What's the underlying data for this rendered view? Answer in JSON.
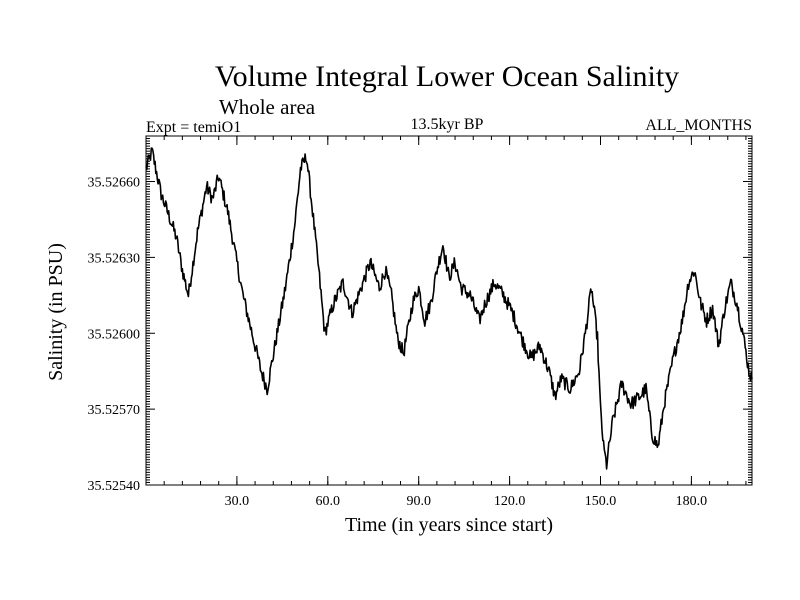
{
  "chart_data": {
    "type": "line",
    "title": "Volume Integral Lower Ocean Salinity",
    "subtitle": "Whole area",
    "experiment": "Expt = temiO1",
    "period": "13.5kyr BP",
    "months": "ALL_MONTHS",
    "xlabel": "Time (in years since start)",
    "ylabel": "Salinity (in PSU)",
    "xlim": [
      0,
      200
    ],
    "ylim": [
      35.5254,
      35.52678
    ],
    "x_ticks": [
      {
        "value": 30,
        "label": "30.0"
      },
      {
        "value": 60,
        "label": "60.0"
      },
      {
        "value": 90,
        "label": "90.0"
      },
      {
        "value": 120,
        "label": "120.0"
      },
      {
        "value": 150,
        "label": "150.0"
      },
      {
        "value": 180,
        "label": "180.0"
      }
    ],
    "y_ticks": [
      {
        "value": 35.5254,
        "label": "35.52540"
      },
      {
        "value": 35.5257,
        "label": "35.52570"
      },
      {
        "value": 35.526,
        "label": "35.52600"
      },
      {
        "value": 35.5263,
        "label": "35.52630"
      },
      {
        "value": 35.5266,
        "label": "35.52660"
      }
    ],
    "series": [
      {
        "name": "Salinity",
        "color": "#000000",
        "x": [
          0,
          2,
          5,
          8,
          10,
          12,
          14,
          17,
          20,
          22,
          24,
          27,
          30,
          32,
          34,
          36,
          38,
          40,
          43,
          46,
          49,
          51,
          53,
          55,
          57,
          59,
          62,
          65,
          68,
          71,
          74,
          77,
          79,
          81,
          83,
          85,
          88,
          90,
          92,
          94,
          96,
          98,
          100,
          102,
          104,
          107,
          110,
          112,
          115,
          118,
          121,
          124,
          127,
          130,
          133,
          135,
          137,
          140,
          143,
          145,
          147,
          149,
          150,
          151,
          152,
          154,
          157,
          160,
          163,
          165,
          167,
          169,
          171,
          174,
          177,
          179,
          181,
          183,
          185,
          187,
          189,
          191,
          193,
          195,
          197,
          199,
          200
        ],
        "values": [
          35.52665,
          35.52672,
          35.52655,
          35.52645,
          35.52638,
          35.52625,
          35.52615,
          35.5264,
          35.52658,
          35.52653,
          35.52662,
          35.52648,
          35.52628,
          35.52615,
          35.52605,
          35.52595,
          35.52585,
          35.52578,
          35.52598,
          35.52618,
          35.52642,
          35.52665,
          35.5267,
          35.52648,
          35.52625,
          35.526,
          35.52612,
          35.5262,
          35.52608,
          35.52618,
          35.52628,
          35.52618,
          35.52625,
          35.52615,
          35.52598,
          35.52592,
          35.52612,
          35.52618,
          35.52605,
          35.52612,
          35.52625,
          35.52635,
          35.52622,
          35.52628,
          35.52618,
          35.52615,
          35.52605,
          35.52612,
          35.5262,
          35.52615,
          35.52608,
          35.52598,
          35.5259,
          35.52595,
          35.52585,
          35.52575,
          35.52582,
          35.52578,
          35.52585,
          35.526,
          35.52618,
          35.52598,
          35.5257,
          35.52555,
          35.52548,
          35.52565,
          35.5258,
          35.52572,
          35.52575,
          35.52578,
          35.5256,
          35.52555,
          35.52572,
          35.5259,
          35.52605,
          35.5262,
          35.52625,
          35.52612,
          35.52605,
          35.5261,
          35.52595,
          35.5261,
          35.5262,
          35.52612,
          35.526,
          35.52585,
          35.52582
        ]
      }
    ]
  }
}
